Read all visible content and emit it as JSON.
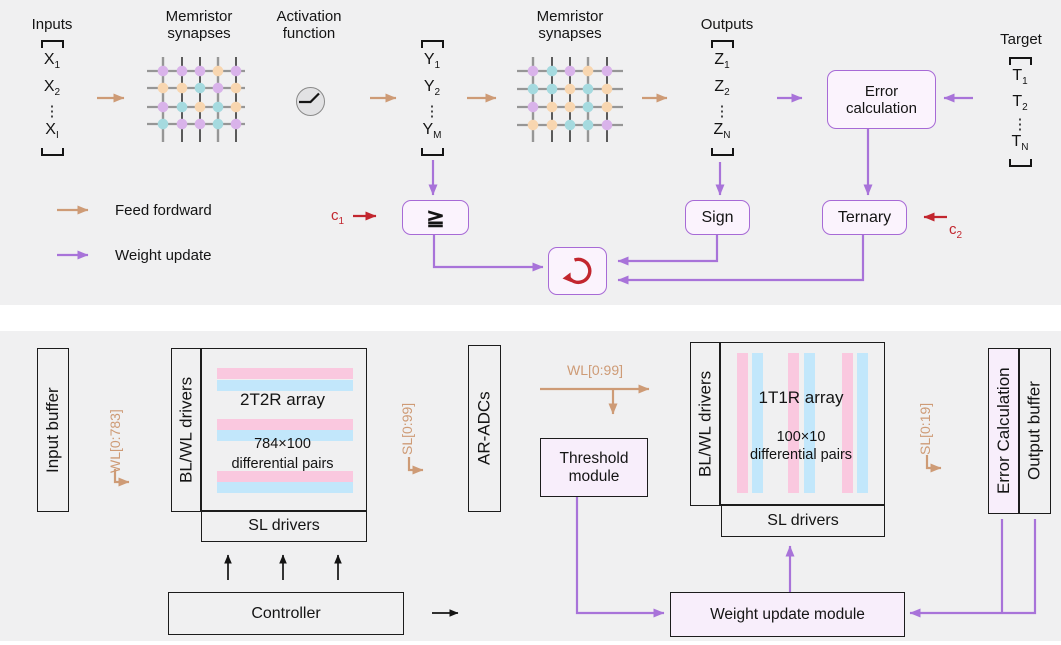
{
  "colors": {
    "panel_bg": "#f0f0f1",
    "feedforward": "#ce9b76",
    "weight_update": "#a873d9",
    "red_accent": "#c2262e",
    "box_border": "#a76ad6",
    "box_fill": "#fbf3fd",
    "lavender_fill": "#f8eefb",
    "stripe_pink": "#fac8df",
    "stripe_blue": "#c2e7fb",
    "dot_purple": "#d9b3ea",
    "dot_orange": "#f8d6b0",
    "dot_teal": "#a5dadf",
    "grid_gray": "#969696",
    "grid_black": "#1a1a1a"
  },
  "top": {
    "labels": {
      "inputs": "Inputs",
      "memristor1": "Memristor synapses",
      "activation": "Activation function",
      "memristor2": "Memristor synapses",
      "outputs": "Outputs",
      "target": "Target"
    },
    "vectors": {
      "inputs": {
        "dots": "⋮",
        "rows": [
          {
            "base": "X",
            "sub": "1"
          },
          {
            "base": "X",
            "sub": "2"
          },
          {
            "base": "X",
            "sub": "I"
          }
        ]
      },
      "hidden": {
        "dots": "⋮",
        "rows": [
          {
            "base": "Y",
            "sub": "1"
          },
          {
            "base": "Y",
            "sub": "2"
          },
          {
            "base": "Y",
            "sub": "M"
          }
        ]
      },
      "outputs": {
        "dots": "⋮",
        "rows": [
          {
            "base": "Z",
            "sub": "1"
          },
          {
            "base": "Z",
            "sub": "2"
          },
          {
            "base": "Z",
            "sub": "N"
          }
        ]
      },
      "target": {
        "dots": "⋮",
        "rows": [
          {
            "base": "T",
            "sub": "1"
          },
          {
            "base": "T",
            "sub": "2"
          },
          {
            "base": "T",
            "sub": "N"
          }
        ]
      }
    },
    "boxes": {
      "error_calculation": "Error calculation",
      "threshold_symbol": "≧",
      "sign": "Sign",
      "ternary": "Ternary"
    },
    "legend": {
      "feedforward": "Feed fordward",
      "weight_update": "Weight update"
    },
    "c1": {
      "base": "c",
      "sub": "1"
    },
    "c2": {
      "base": "c",
      "sub": "2"
    },
    "crossbar1_dots": [
      [
        "purple",
        "purple",
        "purple",
        "orange",
        "purple"
      ],
      [
        "orange",
        "orange",
        "teal",
        "purple",
        "orange"
      ],
      [
        "purple",
        "teal",
        "orange",
        "teal",
        "orange"
      ],
      [
        "teal",
        "purple",
        "purple",
        "teal",
        "purple"
      ]
    ],
    "crossbar2_dots": [
      [
        "purple",
        "teal",
        "purple",
        "orange",
        "purple"
      ],
      [
        "teal",
        "teal",
        "orange",
        "teal",
        "orange"
      ],
      [
        "purple",
        "orange",
        "orange",
        "teal",
        "orange"
      ],
      [
        "orange",
        "orange",
        "teal",
        "teal",
        "purple"
      ]
    ]
  },
  "bottom": {
    "input_buffer": "Input buffer",
    "wl783": "WL[0:783]",
    "blwl_drivers_1": "BL/WL drivers",
    "array_2t2r": {
      "title": "2T2R array",
      "line1": "784×100",
      "line2": "differential pairs"
    },
    "sl_drivers_1": "SL drivers",
    "sl99": "SL[0:99]",
    "ar_adcs": "AR-ADCs",
    "wl99": "WL[0:99]",
    "threshold_module": "Threshold module",
    "blwl_drivers_2": "BL/WL drivers",
    "array_1t1r": {
      "title": "1T1R array",
      "line1": "100×10",
      "line2": "differential pairs"
    },
    "sl_drivers_2": "SL drivers",
    "sl19": "SL[0:19]",
    "error_calculation": "Error Calculation",
    "output_buffer": "Output buffer",
    "controller": "Controller",
    "weight_update_module": "Weight update module"
  }
}
